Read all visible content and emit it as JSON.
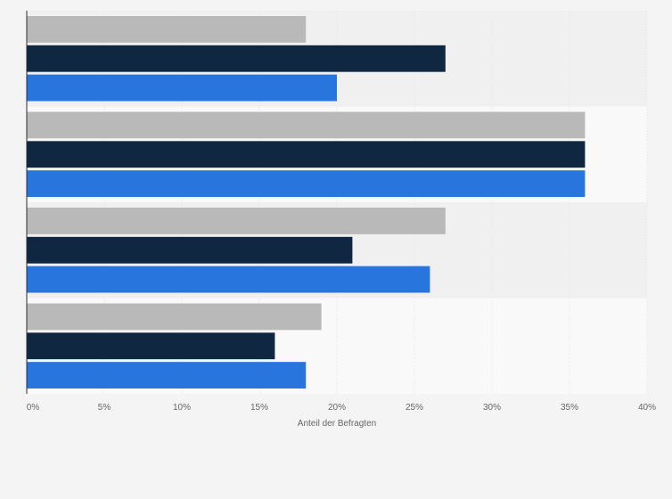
{
  "chart_data": {
    "type": "bar",
    "orientation": "horizontal",
    "categories": [
      "",
      "",
      "",
      ""
    ],
    "series": [
      {
        "values": [
          18,
          36,
          27,
          19
        ],
        "color": "#b9b9b9"
      },
      {
        "values": [
          27,
          36,
          21,
          16
        ],
        "color": "#0f2741"
      },
      {
        "values": [
          20,
          36,
          26,
          18
        ],
        "color": "#2876dd"
      }
    ],
    "xlabel": "Anteil der Befragten",
    "ylabel": "",
    "xlim": [
      0,
      40
    ],
    "x_ticks": [
      0,
      5,
      10,
      15,
      20,
      25,
      30,
      35,
      40
    ],
    "x_tick_labels": [
      "0%",
      "5%",
      "10%",
      "15%",
      "20%",
      "25%",
      "30%",
      "35%",
      "40%"
    ],
    "grid": true,
    "legend": "none"
  }
}
